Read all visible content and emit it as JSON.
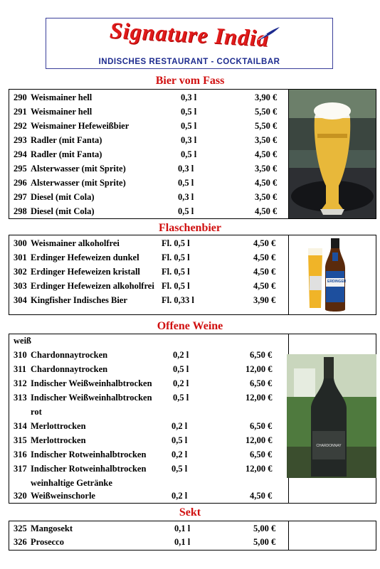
{
  "logo": {
    "name": "Signature India",
    "subtitle": "INDISCHES RESTAURANT - COCKTAILBAR"
  },
  "sections": {
    "bier": {
      "title": "Bier vom Fass",
      "items": [
        {
          "num": "290",
          "name": "Weismainer hell",
          "vol": "0,3 l",
          "price": "3,90 €"
        },
        {
          "num": "291",
          "name": "Weismainer hell",
          "vol": "0,5 l",
          "price": "5,50 €"
        },
        {
          "num": "292",
          "name": "Weismainer Hefeweißbier",
          "vol": "0,5 l",
          "price": "5,50 €"
        },
        {
          "num": "293",
          "name": "Radler (mit Fanta)",
          "vol": "0,3 l",
          "price": "3,50 €"
        },
        {
          "num": "294",
          "name": "Radler (mit Fanta)",
          "vol": "0,5 l",
          "price": "4,50 €"
        },
        {
          "num": "295",
          "name": "Alsterwasser (mit Sprite)",
          "vol": "0,3 l",
          "price": "3,50 €"
        },
        {
          "num": "296",
          "name": "Alsterwasser (mit Sprite)",
          "vol": "0,5 l",
          "price": "4,50 €"
        },
        {
          "num": "297",
          "name": "Diesel (mit Cola)",
          "vol": "0,3 l",
          "price": "3,50 €"
        },
        {
          "num": "298",
          "name": "Diesel (mit Cola)",
          "vol": "0,5 l",
          "price": "4,50 €"
        }
      ]
    },
    "flaschen": {
      "title": "Flaschenbier",
      "items": [
        {
          "num": "300",
          "name": "Weismainer alkoholfrei",
          "vol": "Fl. 0,5 l",
          "price": "4,50 €"
        },
        {
          "num": "301",
          "name": "Erdinger Hefeweizen dunkel",
          "vol": "Fl. 0,5 l",
          "price": "4,50 €"
        },
        {
          "num": "302",
          "name": "Erdinger Hefeweizen kristall",
          "vol": "Fl. 0,5 l",
          "price": "4,50 €"
        },
        {
          "num": "303",
          "name": "Erdinger Hefeweizen alkoholfrei",
          "vol": "Fl. 0,5 l",
          "price": "4,50 €"
        },
        {
          "num": "304",
          "name": "Kingfisher Indisches Bier",
          "vol": "Fl. 0,33 l",
          "price": "3,90 €"
        }
      ],
      "bottle_label": "ERDINGER"
    },
    "weine": {
      "title": "Offene Weine",
      "group_weiss": "weiß",
      "items": [
        {
          "num": "310",
          "name": "Chardonnaytrocken",
          "vol": "0,2 l",
          "price": "6,50 €"
        },
        {
          "num": "311",
          "name": "Chardonnaytrocken",
          "vol": "0,5 l",
          "price": "12,00 €"
        },
        {
          "num": "312",
          "name": "Indischer Weißweinhalbtrocken",
          "vol": "0,2 l",
          "price": "6,50 €"
        },
        {
          "num": "313",
          "name": "Indischer Weißweinhalbtrocken",
          "vol": "0,5 l",
          "price": "12,00 €"
        },
        {
          "num": "314",
          "name": "Merlottrocken",
          "vol": "0,2 l",
          "price": "6,50 €"
        },
        {
          "num": "315",
          "name": "Merlottrocken",
          "vol": "0,5 l",
          "price": "12,00 €"
        },
        {
          "num": "316",
          "name": "Indischer Rotweinhalbtrocken",
          "vol": "0,2 l",
          "price": "6,50 €"
        },
        {
          "num": "317",
          "name": "Indischer Rotweinhalbtrocken",
          "vol": "0,5 l",
          "price": "12,00 €"
        },
        {
          "num": "320",
          "name": "Weißweinschorle",
          "vol": "0,2 l",
          "price": "4,50 €"
        }
      ],
      "group_rot": "rot",
      "group_weinhaltig": "weinhaltige Getränke"
    },
    "sekt": {
      "title": "Sekt",
      "items": [
        {
          "num": "325",
          "name": "Mangosekt",
          "vol": "0,1 l",
          "price": "5,00 €"
        },
        {
          "num": "326",
          "name": "Prosecco",
          "vol": "0,1 l",
          "price": "5,00 €"
        }
      ]
    }
  },
  "colors": {
    "title_red": "#d01010",
    "logo_blue": "#1d2b8f"
  }
}
